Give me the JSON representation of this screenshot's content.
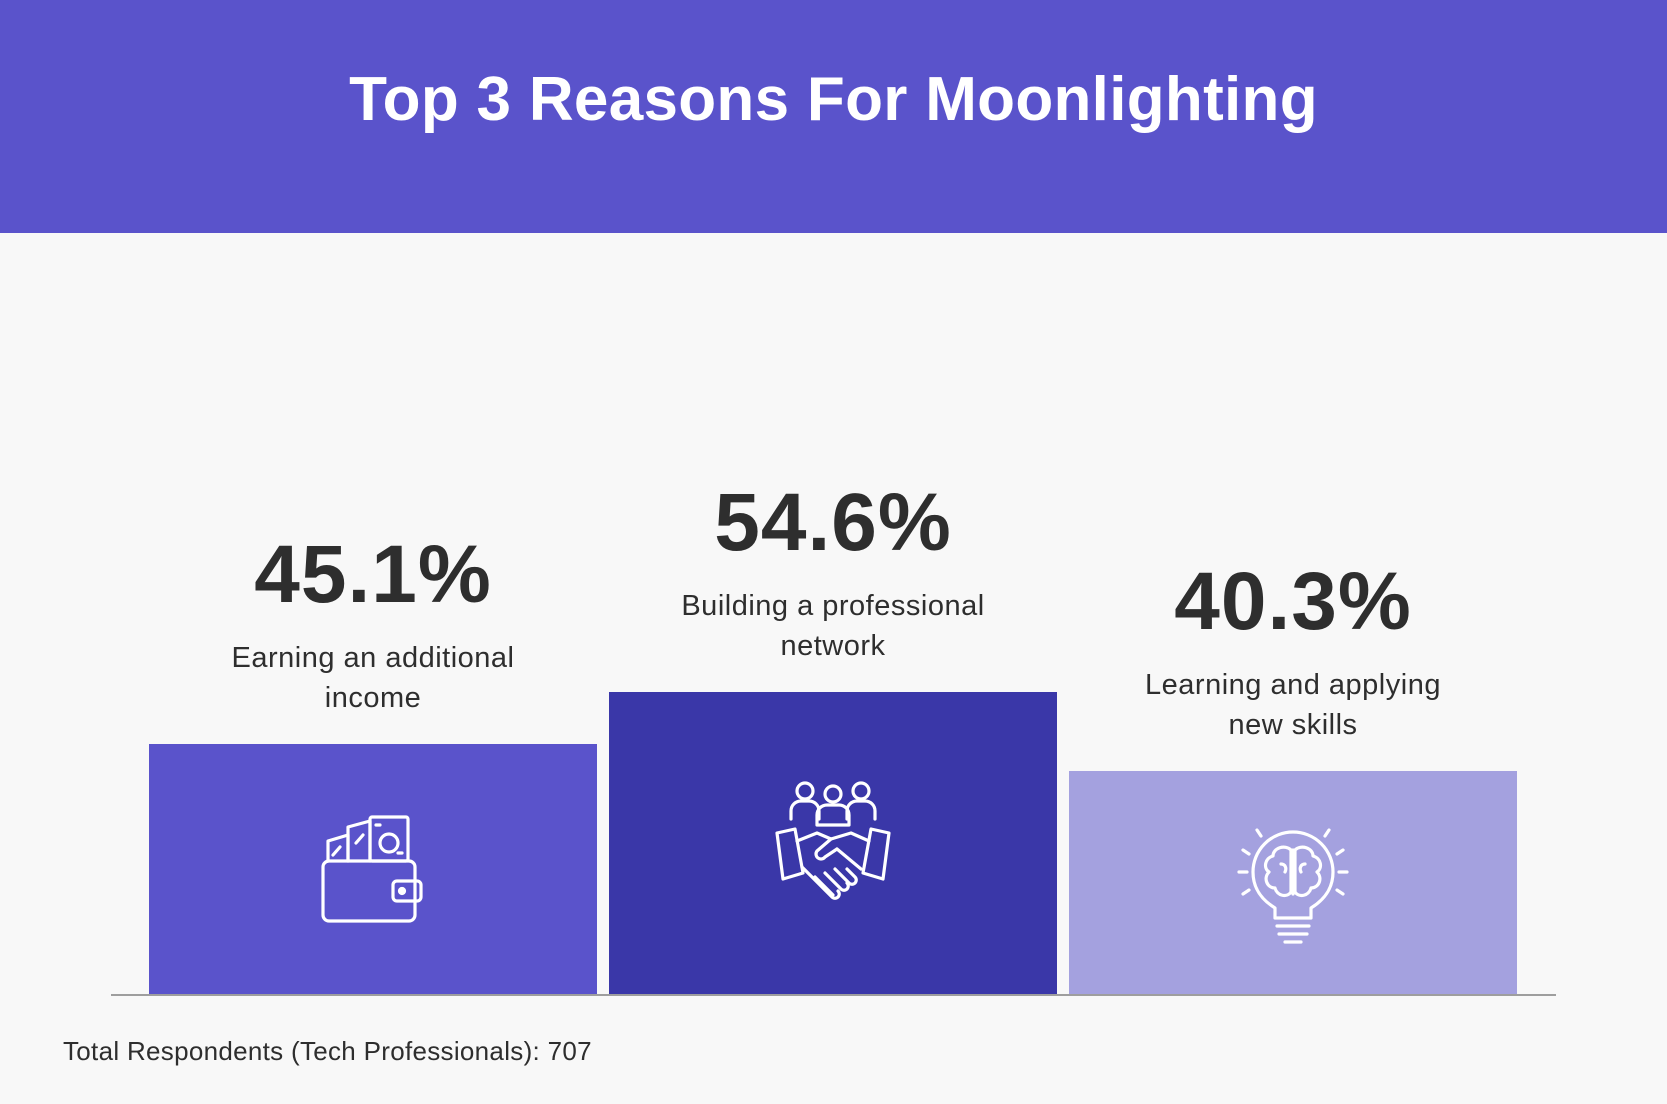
{
  "header": {
    "title": "Top 3 Reasons For Moonlighting"
  },
  "colors": {
    "header_bg": "#5a53cb",
    "background": "#f8f8f8",
    "bar_1": "#5a53cb",
    "bar_2": "#3a37a8",
    "bar_3": "#a4a1df",
    "text": "#2e2e2e",
    "icon": "#ffffff"
  },
  "chart_data": {
    "type": "bar",
    "title": "Top 3 Reasons For Moonlighting",
    "xlabel": "",
    "ylabel": "",
    "unit": "%",
    "categories": [
      "Earning an additional income",
      "Building a professional network",
      "Learning and applying new skills"
    ],
    "values": [
      45.1,
      54.6,
      40.3
    ],
    "value_labels": [
      "45.1%",
      "54.6%",
      "40.3%"
    ],
    "icons": [
      "wallet-money-icon",
      "team-handshake-icon",
      "lightbulb-brain-icon"
    ],
    "grid": false,
    "legend": "none"
  },
  "footnote": "Total Respondents (Tech Professionals): 707"
}
